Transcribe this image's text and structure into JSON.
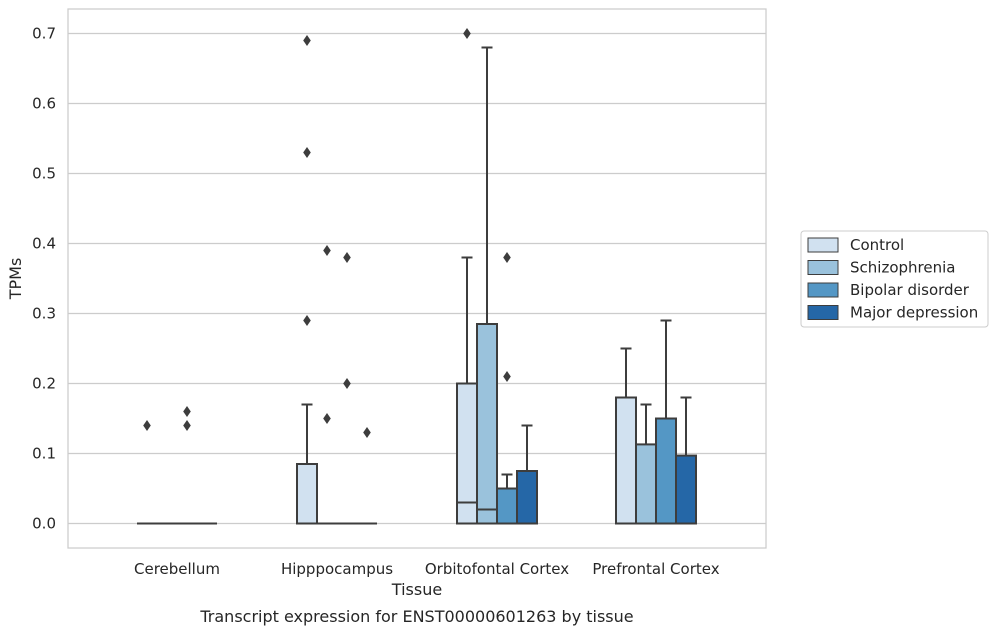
{
  "chart_data": {
    "type": "box",
    "caption": "Transcript expression for ENST00000601263 by tissue",
    "xlabel": "Tissue",
    "ylabel": "TPMs",
    "ylim": [
      -0.035,
      0.735
    ],
    "yticks": [
      0.0,
      0.1,
      0.2,
      0.3,
      0.4,
      0.5,
      0.6,
      0.7
    ],
    "ytick_labels": [
      "0.0",
      "0.1",
      "0.2",
      "0.3",
      "0.4",
      "0.5",
      "0.6",
      "0.7"
    ],
    "grid": "horizontal",
    "legend_position": "right",
    "categories": [
      "Cerebellum",
      "Hipppocampus",
      "Orbitofontal Cortex",
      "Prefrontal Cortex"
    ],
    "series": [
      {
        "name": "Control",
        "color": "#d1e1f0",
        "boxes": [
          {
            "min": 0,
            "q1": 0,
            "median": 0,
            "q3": 0,
            "max": 0,
            "outliers": [
              0.14
            ]
          },
          {
            "min": 0,
            "q1": 0,
            "median": 0,
            "q3": 0.085,
            "max": 0.17,
            "outliers": [
              0.29,
              0.53,
              0.69
            ]
          },
          {
            "min": 0,
            "q1": 0,
            "median": 0.03,
            "q3": 0.2,
            "max": 0.38,
            "outliers": [
              0.7
            ]
          },
          {
            "min": 0,
            "q1": 0,
            "median": 0,
            "q3": 0.18,
            "max": 0.25,
            "outliers": []
          }
        ]
      },
      {
        "name": "Schizophrenia",
        "color": "#9ac2dc",
        "boxes": [
          {
            "min": 0,
            "q1": 0,
            "median": 0,
            "q3": 0,
            "max": 0,
            "outliers": []
          },
          {
            "min": 0,
            "q1": 0,
            "median": 0,
            "q3": 0,
            "max": 0,
            "outliers": [
              0.15,
              0.39
            ]
          },
          {
            "min": 0,
            "q1": 0,
            "median": 0.02,
            "q3": 0.285,
            "max": 0.68,
            "outliers": []
          },
          {
            "min": 0,
            "q1": 0,
            "median": 0,
            "q3": 0.113,
            "max": 0.17,
            "outliers": []
          }
        ]
      },
      {
        "name": "Bipolar disorder",
        "color": "#5497c5",
        "boxes": [
          {
            "min": 0,
            "q1": 0,
            "median": 0,
            "q3": 0,
            "max": 0,
            "outliers": [
              0.14,
              0.16
            ]
          },
          {
            "min": 0,
            "q1": 0,
            "median": 0,
            "q3": 0,
            "max": 0,
            "outliers": [
              0.2,
              0.38
            ]
          },
          {
            "min": 0,
            "q1": 0,
            "median": 0,
            "q3": 0.05,
            "max": 0.07,
            "outliers": [
              0.21,
              0.38
            ]
          },
          {
            "min": 0,
            "q1": 0,
            "median": 0,
            "q3": 0.15,
            "max": 0.29,
            "outliers": []
          }
        ]
      },
      {
        "name": "Major depression",
        "color": "#2567a7",
        "boxes": [
          {
            "min": 0,
            "q1": 0,
            "median": 0,
            "q3": 0,
            "max": 0,
            "outliers": []
          },
          {
            "min": 0,
            "q1": 0,
            "median": 0,
            "q3": 0,
            "max": 0,
            "outliers": [
              0.13
            ]
          },
          {
            "min": 0,
            "q1": 0,
            "median": 0,
            "q3": 0.075,
            "max": 0.14,
            "outliers": []
          },
          {
            "min": 0,
            "q1": 0,
            "median": 0,
            "q3": 0.097,
            "max": 0.18,
            "outliers": []
          }
        ]
      }
    ]
  }
}
